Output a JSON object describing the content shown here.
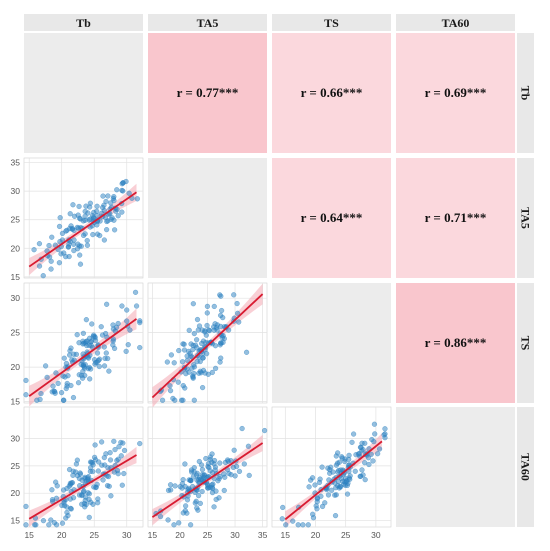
{
  "chart_data": {
    "type": "scatter",
    "variables": [
      "Tb",
      "TA5",
      "TS",
      "TA60"
    ],
    "correlations": [
      {
        "row": 0,
        "col": 1,
        "label": "r = 0.77***",
        "r": 0.77
      },
      {
        "row": 0,
        "col": 2,
        "label": "r = 0.66***",
        "r": 0.66
      },
      {
        "row": 0,
        "col": 3,
        "label": "r = 0.69***",
        "r": 0.69
      },
      {
        "row": 1,
        "col": 2,
        "label": "r = 0.64***",
        "r": 0.64
      },
      {
        "row": 1,
        "col": 3,
        "label": "r = 0.71***",
        "r": 0.71
      },
      {
        "row": 2,
        "col": 3,
        "label": "r = 0.86***",
        "r": 0.86
      }
    ],
    "xlim": [
      [
        14.2,
        32.5
      ],
      [
        14.2,
        35.8
      ],
      [
        12.8,
        32.5
      ]
    ],
    "ylim": [
      [
        14.8,
        35.8
      ],
      [
        14.8,
        32.2
      ],
      [
        13.8,
        35.8
      ]
    ],
    "xticks": [
      [
        "15",
        "20",
        "25",
        "30"
      ],
      [
        "15",
        "20",
        "25",
        "30",
        "35"
      ],
      [
        "15",
        "20",
        "25",
        "30"
      ]
    ],
    "xtick_values": [
      [
        15,
        20,
        25,
        30
      ],
      [
        15,
        20,
        25,
        30,
        35
      ],
      [
        15,
        20,
        25,
        30
      ]
    ],
    "yticks": [
      [
        "15",
        "20",
        "25",
        "30",
        "35"
      ],
      [
        "15",
        "20",
        "25",
        "30"
      ],
      [
        "15",
        "20",
        "25",
        "30"
      ]
    ],
    "ytick_values": [
      [
        15,
        20,
        25,
        30,
        35
      ],
      [
        15,
        20,
        25,
        30
      ],
      [
        15,
        20,
        25,
        30
      ]
    ],
    "fit_lines": [
      {
        "row": 1,
        "col": 0,
        "x": [
          15.0,
          31.5
        ],
        "y": [
          16.8,
          29.8
        ]
      },
      {
        "row": 2,
        "col": 0,
        "x": [
          15.0,
          31.5
        ],
        "y": [
          15.8,
          27.0
        ]
      },
      {
        "row": 2,
        "col": 1,
        "x": [
          15.0,
          35.0
        ],
        "y": [
          15.6,
          30.6
        ]
      },
      {
        "row": 3,
        "col": 0,
        "x": [
          15.0,
          31.5
        ],
        "y": [
          15.3,
          27.0
        ]
      },
      {
        "row": 3,
        "col": 1,
        "x": [
          15.0,
          35.0
        ],
        "y": [
          15.6,
          29.2
        ]
      },
      {
        "row": 3,
        "col": 2,
        "x": [
          15.0,
          31.0
        ],
        "y": [
          15.2,
          29.5
        ]
      }
    ],
    "grid": true,
    "colors": {
      "point": "#2a7fc0",
      "fit_line": "#d81b31",
      "ci_band": "#f4a7b3",
      "strip_bg": "#e8e8e8",
      "empty_panel": "#ececec",
      "corr_high": "#f9c6cd",
      "corr_low": "#fbd8dd",
      "grid": "#e2e2e2"
    },
    "point_count": 130
  }
}
